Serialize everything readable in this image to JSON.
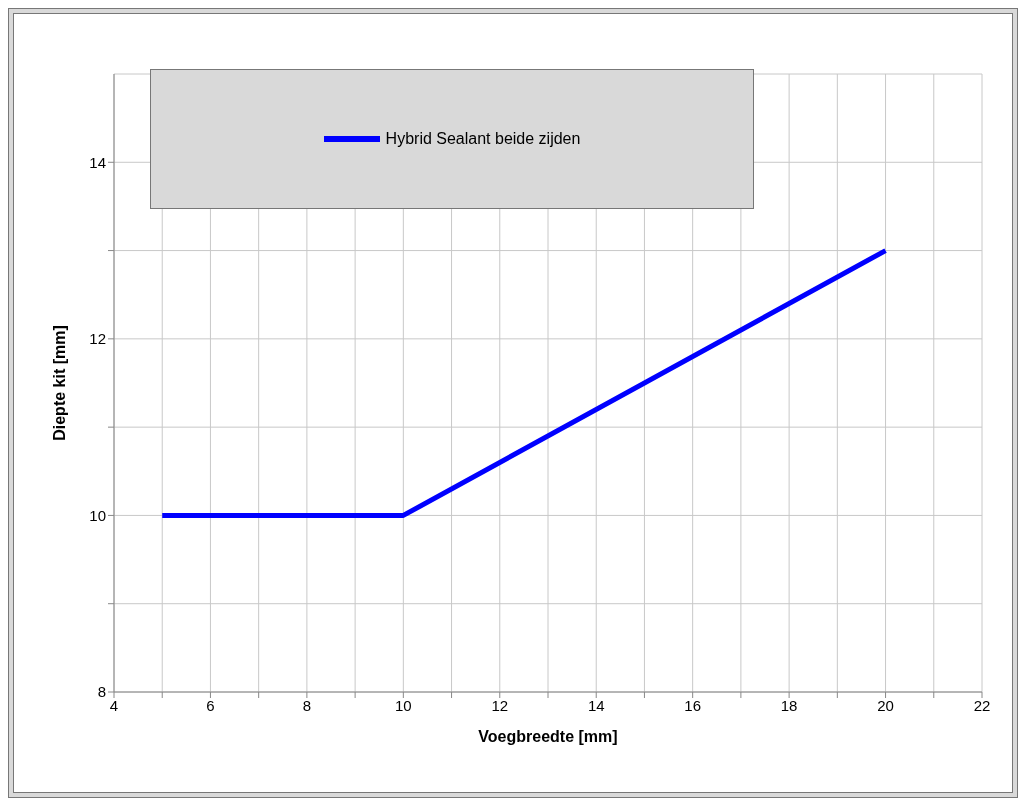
{
  "chart_data": {
    "type": "line",
    "xlabel": "Voegbreedte [mm]",
    "ylabel": "Diepte kit [mm]",
    "x": [
      5,
      10,
      20
    ],
    "series": [
      {
        "name": "Hybrid Sealant beide zijden",
        "color": "#0000ff",
        "values": [
          10,
          10,
          13
        ]
      }
    ],
    "xlim": [
      4,
      22
    ],
    "xticks": [
      4,
      {
        "value": 5,
        "label": null
      },
      6,
      {
        "value": 7,
        "label": null
      },
      8,
      {
        "value": 9,
        "label": null
      },
      10,
      {
        "value": 11,
        "label": null
      },
      12,
      {
        "value": 13,
        "label": null
      },
      14,
      {
        "value": 15,
        "label": null
      },
      16,
      {
        "value": 17,
        "label": null
      },
      18,
      {
        "value": 19,
        "label": null
      },
      20,
      {
        "value": 21,
        "label": null
      },
      22
    ],
    "ylim": [
      8,
      15
    ],
    "yticks": [
      8,
      {
        "value": 9,
        "label": null
      },
      10,
      {
        "value": 11,
        "label": null
      },
      12,
      {
        "value": 13,
        "label": null
      },
      14
    ],
    "grid": true,
    "legend": "top left",
    "marker": "none",
    "line_style": "solid"
  }
}
